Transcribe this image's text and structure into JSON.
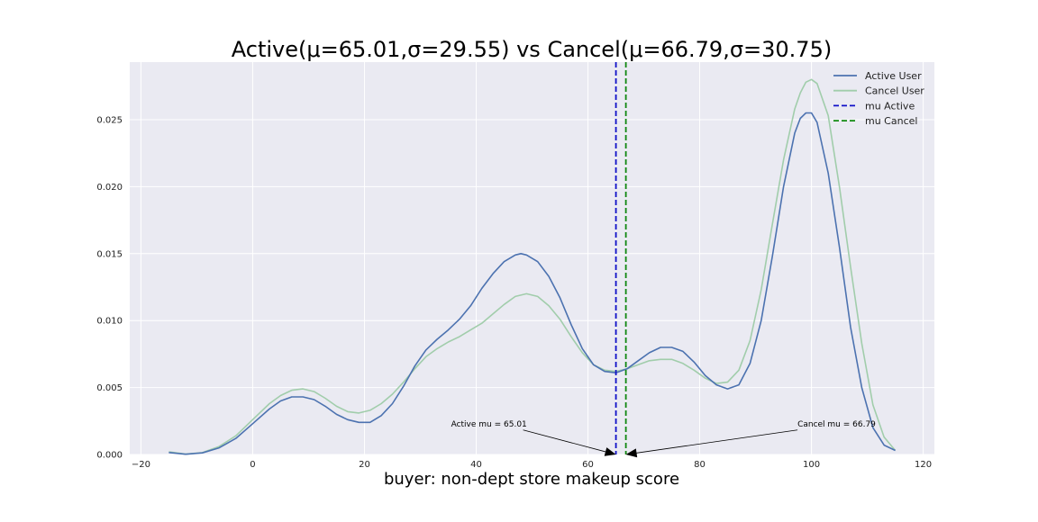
{
  "chart_data": {
    "type": "line",
    "title": "Active(μ=65.01,σ=29.55) vs Cancel(μ=66.79,σ=30.75)",
    "xlabel": "buyer: non-dept store makeup score",
    "ylabel": "",
    "xlim": [
      -22,
      122
    ],
    "ylim": [
      0,
      0.0293
    ],
    "xticks": [
      -20,
      0,
      20,
      40,
      60,
      80,
      100,
      120
    ],
    "xtick_labels": [
      "−20",
      "0",
      "20",
      "40",
      "60",
      "80",
      "100",
      "120"
    ],
    "yticks": [
      0.0,
      0.005,
      0.01,
      0.015,
      0.02,
      0.025
    ],
    "ytick_labels": [
      "0.000",
      "0.005",
      "0.010",
      "0.015",
      "0.020",
      "0.025"
    ],
    "grid": true,
    "legend_position": "top-right",
    "background": "#eaeaf2",
    "series": [
      {
        "name": "Active User",
        "color": "#4c72b0",
        "x": [
          -15,
          -12,
          -9,
          -6,
          -3,
          0,
          3,
          5,
          7,
          9,
          11,
          13,
          15,
          17,
          19,
          21,
          23,
          25,
          27,
          29,
          31,
          33,
          35,
          37,
          39,
          41,
          43,
          45,
          47,
          48,
          49,
          51,
          53,
          55,
          57,
          59,
          61,
          63,
          65,
          67,
          69,
          71,
          73,
          75,
          77,
          79,
          81,
          83,
          85,
          87,
          89,
          91,
          93,
          95,
          97,
          98,
          99,
          100,
          101,
          103,
          105,
          107,
          109,
          111,
          113,
          115
        ],
        "values": [
          0.00015,
          2e-05,
          0.00012,
          0.0005,
          0.0012,
          0.0023,
          0.0034,
          0.004,
          0.0043,
          0.0043,
          0.0041,
          0.0036,
          0.003,
          0.0026,
          0.0024,
          0.0024,
          0.0029,
          0.0038,
          0.0051,
          0.0066,
          0.0078,
          0.0086,
          0.0093,
          0.0101,
          0.0111,
          0.0124,
          0.0135,
          0.0144,
          0.0149,
          0.015,
          0.0149,
          0.0144,
          0.0133,
          0.0117,
          0.0097,
          0.0079,
          0.0067,
          0.0062,
          0.0061,
          0.0064,
          0.007,
          0.0076,
          0.008,
          0.008,
          0.0077,
          0.0069,
          0.0059,
          0.0052,
          0.0049,
          0.0052,
          0.0068,
          0.01,
          0.0148,
          0.02,
          0.024,
          0.0251,
          0.0255,
          0.0255,
          0.0248,
          0.021,
          0.0155,
          0.0095,
          0.005,
          0.002,
          0.0007,
          0.0003
        ]
      },
      {
        "name": "Cancel User",
        "color": "#a1cdab",
        "x": [
          -15,
          -12,
          -9,
          -6,
          -3,
          0,
          3,
          5,
          7,
          9,
          11,
          13,
          15,
          17,
          19,
          21,
          23,
          25,
          27,
          29,
          31,
          33,
          35,
          37,
          39,
          41,
          43,
          45,
          47,
          49,
          51,
          53,
          55,
          57,
          59,
          61,
          63,
          65,
          67,
          69,
          71,
          73,
          75,
          77,
          79,
          81,
          83,
          85,
          87,
          89,
          91,
          93,
          95,
          97,
          98,
          99,
          100,
          101,
          103,
          105,
          107,
          109,
          111,
          113,
          115
        ],
        "values": [
          0.0002,
          3e-05,
          0.00014,
          0.0006,
          0.0014,
          0.0026,
          0.0038,
          0.0044,
          0.0048,
          0.0049,
          0.0047,
          0.0042,
          0.0036,
          0.0032,
          0.0031,
          0.0033,
          0.0038,
          0.0045,
          0.0054,
          0.0064,
          0.0073,
          0.0079,
          0.0084,
          0.0088,
          0.0093,
          0.0098,
          0.0105,
          0.0112,
          0.0118,
          0.012,
          0.0118,
          0.0111,
          0.0101,
          0.0088,
          0.0076,
          0.0067,
          0.0063,
          0.0062,
          0.0064,
          0.0067,
          0.007,
          0.0071,
          0.0071,
          0.0068,
          0.0063,
          0.0057,
          0.0053,
          0.0054,
          0.0063,
          0.0085,
          0.0123,
          0.0172,
          0.022,
          0.0258,
          0.027,
          0.0278,
          0.028,
          0.0277,
          0.0253,
          0.02,
          0.014,
          0.0083,
          0.0037,
          0.0013,
          0.0003
        ]
      }
    ],
    "vlines": [
      {
        "name": "mu Active",
        "x": 65.01,
        "color": "#1010c8",
        "style": "dashed"
      },
      {
        "name": "mu Cancel",
        "x": 66.79,
        "color": "#108810",
        "style": "dashed"
      }
    ],
    "annotations": [
      {
        "text": "Active mu = 65.01",
        "text_x": 35.5,
        "text_y": 0.0021,
        "target_x": 65.01,
        "target_y": 0.0,
        "anchor": "start"
      },
      {
        "text": "Cancel mu = 66.79",
        "text_x": 97.5,
        "text_y": 0.0021,
        "target_x": 66.79,
        "target_y": 0.0,
        "anchor": "start"
      }
    ]
  }
}
